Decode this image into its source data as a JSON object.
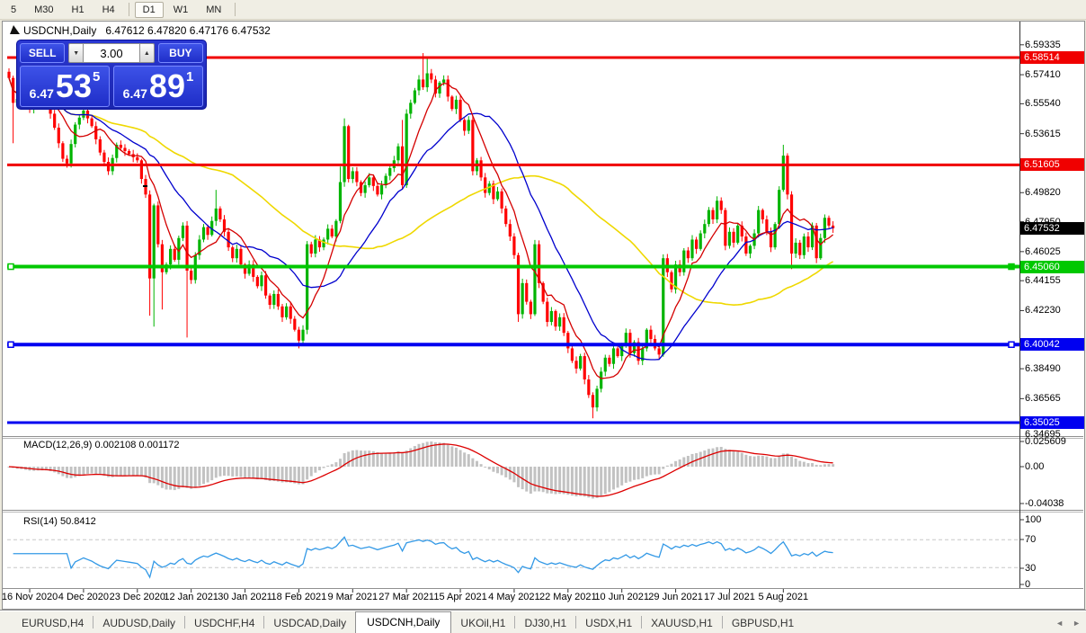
{
  "toolbar": {
    "items": [
      {
        "label": "5"
      },
      {
        "label": "M30"
      },
      {
        "label": "H1"
      },
      {
        "label": "H4"
      },
      {
        "label": "D1",
        "active": true
      },
      {
        "label": "W1"
      },
      {
        "label": "MN"
      }
    ]
  },
  "chart": {
    "title": {
      "symbol": "USDCNH,Daily",
      "ohlc_text": "6.47612 6.47820 6.47176 6.47532"
    },
    "trade_panel": {
      "sell_label": "SELL",
      "buy_label": "BUY",
      "volume": "3.00",
      "spinner_down_icon": "▼",
      "spinner_up_icon": "▲",
      "price_prefix": "6.47",
      "sell_big": "53",
      "sell_sup": "5",
      "buy_big": "89",
      "buy_sup": "1"
    }
  },
  "indicators": {
    "macd": {
      "label": "MACD(12,26,9) 0.002108 0.001172",
      "axis_labels": [
        "0.025609",
        "0.00",
        "-0.04038"
      ],
      "params": [
        12,
        26,
        9
      ],
      "values": [
        0.002108,
        0.001172
      ]
    },
    "rsi": {
      "label": "RSI(14) 50.8412",
      "axis_labels": [
        "100",
        "70",
        "30",
        "0"
      ],
      "period": 14,
      "value": 50.8412
    }
  },
  "tabs": {
    "items": [
      {
        "label": "EURUSD,H4"
      },
      {
        "label": "AUDUSD,Daily"
      },
      {
        "label": "USDCHF,H4"
      },
      {
        "label": "USDCAD,Daily"
      },
      {
        "label": "USDCNH,Daily",
        "active": true
      },
      {
        "label": "UKOil,H1"
      },
      {
        "label": "DJ30,H1"
      },
      {
        "label": "USDX,H1"
      },
      {
        "label": "XAUUSD,H1"
      },
      {
        "label": "GBPUSD,H1"
      }
    ],
    "nav_left": "◄",
    "nav_right": "►"
  },
  "chart_data": {
    "type": "candlestick+indicators",
    "symbol": "USDCNH",
    "timeframe": "Daily",
    "ohlc_display": {
      "open": "6.47612",
      "high": "6.47820",
      "low": "6.47176",
      "close": "6.47532"
    },
    "n_candles": 200,
    "price_anchors": [
      [
        0,
        6.572
      ],
      [
        1,
        6.556
      ],
      [
        3,
        6.561
      ],
      [
        5,
        6.552
      ],
      [
        7,
        6.563
      ],
      [
        9,
        6.558
      ],
      [
        11,
        6.54
      ],
      [
        13,
        6.52
      ],
      [
        14,
        6.517
      ],
      [
        16,
        6.542
      ],
      [
        18,
        6.551
      ],
      [
        20,
        6.541
      ],
      [
        22,
        6.524
      ],
      [
        24,
        6.512
      ],
      [
        26,
        6.529
      ],
      [
        29,
        6.523
      ],
      [
        31,
        6.519
      ],
      [
        32,
        6.507
      ],
      [
        33,
        6.497
      ],
      [
        34,
        6.443
      ],
      [
        35,
        6.49
      ],
      [
        36,
        6.465
      ],
      [
        37,
        6.447
      ],
      [
        38,
        6.452
      ],
      [
        39,
        6.462
      ],
      [
        40,
        6.455
      ],
      [
        41,
        6.469
      ],
      [
        42,
        6.477
      ],
      [
        43,
        6.448
      ],
      [
        44,
        6.442
      ],
      [
        45,
        6.458
      ],
      [
        46,
        6.468
      ],
      [
        47,
        6.476
      ],
      [
        48,
        6.471
      ],
      [
        49,
        6.48
      ],
      [
        50,
        6.488
      ],
      [
        51,
        6.481
      ],
      [
        52,
        6.473
      ],
      [
        53,
        6.463
      ],
      [
        54,
        6.456
      ],
      [
        55,
        6.462
      ],
      [
        56,
        6.452
      ],
      [
        57,
        6.446
      ],
      [
        58,
        6.452
      ],
      [
        59,
        6.444
      ],
      [
        60,
        6.438
      ],
      [
        61,
        6.445
      ],
      [
        62,
        6.432
      ],
      [
        63,
        6.426
      ],
      [
        64,
        6.433
      ],
      [
        65,
        6.425
      ],
      [
        66,
        6.418
      ],
      [
        67,
        6.425
      ],
      [
        68,
        6.417
      ],
      [
        69,
        6.41
      ],
      [
        70,
        6.403
      ],
      [
        71,
        6.41
      ],
      [
        72,
        6.465
      ],
      [
        73,
        6.459
      ],
      [
        74,
        6.468
      ],
      [
        75,
        6.463
      ],
      [
        76,
        6.468
      ],
      [
        77,
        6.475
      ],
      [
        78,
        6.47
      ],
      [
        79,
        6.48
      ],
      [
        80,
        6.505
      ],
      [
        81,
        6.541
      ],
      [
        82,
        6.507
      ],
      [
        83,
        6.512
      ],
      [
        85,
        6.498
      ],
      [
        87,
        6.508
      ],
      [
        89,
        6.497
      ],
      [
        91,
        6.509
      ],
      [
        93,
        6.519
      ],
      [
        94,
        6.528
      ],
      [
        95,
        6.503
      ],
      [
        96,
        6.549
      ],
      [
        97,
        6.556
      ],
      [
        98,
        6.564
      ],
      [
        99,
        6.571
      ],
      [
        100,
        6.566
      ],
      [
        101,
        6.575
      ],
      [
        102,
        6.571
      ],
      [
        103,
        6.562
      ],
      [
        104,
        6.569
      ],
      [
        105,
        6.571
      ],
      [
        106,
        6.56
      ],
      [
        107,
        6.552
      ],
      [
        108,
        6.558
      ],
      [
        109,
        6.545
      ],
      [
        110,
        6.538
      ],
      [
        111,
        6.545
      ],
      [
        112,
        6.512
      ],
      [
        113,
        6.519
      ],
      [
        114,
        6.508
      ],
      [
        115,
        6.498
      ],
      [
        116,
        6.504
      ],
      [
        117,
        6.494
      ],
      [
        118,
        6.499
      ],
      [
        119,
        6.488
      ],
      [
        120,
        6.478
      ],
      [
        121,
        6.47
      ],
      [
        122,
        6.458
      ],
      [
        123,
        6.42
      ],
      [
        124,
        6.44
      ],
      [
        125,
        6.428
      ],
      [
        126,
        6.42
      ],
      [
        127,
        6.465
      ],
      [
        128,
        6.44
      ],
      [
        129,
        6.428
      ],
      [
        130,
        6.415
      ],
      [
        131,
        6.422
      ],
      [
        132,
        6.412
      ],
      [
        133,
        6.418
      ],
      [
        134,
        6.408
      ],
      [
        135,
        6.398
      ],
      [
        136,
        6.39
      ],
      [
        137,
        6.385
      ],
      [
        138,
        6.393
      ],
      [
        139,
        6.378
      ],
      [
        140,
        6.368
      ],
      [
        141,
        6.36
      ],
      [
        142,
        6.372
      ],
      [
        143,
        6.383
      ],
      [
        144,
        6.392
      ],
      [
        145,
        6.388
      ],
      [
        146,
        6.398
      ],
      [
        147,
        6.393
      ],
      [
        148,
        6.4
      ],
      [
        149,
        6.408
      ],
      [
        150,
        6.395
      ],
      [
        151,
        6.402
      ],
      [
        152,
        6.39
      ],
      [
        153,
        6.398
      ],
      [
        154,
        6.41
      ],
      [
        155,
        6.404
      ],
      [
        156,
        6.398
      ],
      [
        157,
        6.394
      ],
      [
        158,
        6.456
      ],
      [
        159,
        6.447
      ],
      [
        160,
        6.436
      ],
      [
        161,
        6.452
      ],
      [
        162,
        6.447
      ],
      [
        163,
        6.461
      ],
      [
        164,
        6.456
      ],
      [
        165,
        6.468
      ],
      [
        166,
        6.462
      ],
      [
        167,
        6.472
      ],
      [
        168,
        6.478
      ],
      [
        169,
        6.487
      ],
      [
        170,
        6.481
      ],
      [
        171,
        6.493
      ],
      [
        172,
        6.487
      ],
      [
        173,
        6.464
      ],
      [
        174,
        6.473
      ],
      [
        175,
        6.466
      ],
      [
        176,
        6.477
      ],
      [
        177,
        6.47
      ],
      [
        178,
        6.459
      ],
      [
        179,
        6.464
      ],
      [
        180,
        6.472
      ],
      [
        181,
        6.487
      ],
      [
        182,
        6.481
      ],
      [
        183,
        6.473
      ],
      [
        184,
        6.463
      ],
      [
        185,
        6.478
      ],
      [
        186,
        6.5
      ],
      [
        187,
        6.522
      ],
      [
        188,
        6.497
      ],
      [
        189,
        6.459
      ],
      [
        190,
        6.466
      ],
      [
        191,
        6.458
      ],
      [
        192,
        6.47
      ],
      [
        193,
        6.463
      ],
      [
        194,
        6.477
      ],
      [
        195,
        6.456
      ],
      [
        196,
        6.469
      ],
      [
        197,
        6.482
      ],
      [
        198,
        6.477
      ],
      [
        199,
        6.4753
      ]
    ],
    "special_wicks": {
      "1": {
        "low": 6.53
      },
      "34": {
        "low": 6.419
      },
      "35": {
        "low": 6.412
      },
      "37": {
        "low": 6.423
      },
      "43": {
        "low": 6.405
      },
      "50": {
        "high": 6.5
      },
      "70": {
        "low": 6.398
      },
      "80": {
        "high": 6.515
      },
      "81": {
        "high": 6.546
      },
      "95": {
        "high": 6.545
      },
      "100": {
        "high": 6.588
      },
      "101": {
        "high": 6.586
      },
      "123": {
        "low": 6.415
      },
      "141": {
        "low": 6.353
      },
      "187": {
        "high": 6.529
      },
      "189": {
        "low": 6.449
      }
    },
    "ma_periods": {
      "fast": 8,
      "mid": 21,
      "slow": 55
    },
    "hlines": [
      {
        "price": 6.58514,
        "color": "#F00000",
        "w": 3,
        "handles": false
      },
      {
        "price": 6.51605,
        "color": "#F00000",
        "w": 3,
        "handles": false
      },
      {
        "price": 6.4506,
        "color": "#00C800",
        "w": 4,
        "handles": true
      },
      {
        "price": 6.40042,
        "color": "#0000F0",
        "w": 4,
        "handles": true
      },
      {
        "price": 6.35025,
        "color": "#0000F0",
        "w": 3,
        "handles": false
      }
    ],
    "current_price": 6.47532,
    "price_axis_labels": [
      "6.59335",
      "6.57410",
      "6.55540",
      "6.53615",
      "6.49820",
      "6.47950",
      "6.46025",
      "6.44155",
      "6.42230",
      "6.38490",
      "6.36565",
      "6.34695"
    ],
    "price_badges": [
      {
        "text": "6.58514",
        "bg": "#F00000"
      },
      {
        "text": "6.51605",
        "bg": "#F00000"
      },
      {
        "text": "6.47532",
        "bg": "#000000"
      },
      {
        "text": "6.45060",
        "bg": "#00C800"
      },
      {
        "text": "6.40042",
        "bg": "#0000F0"
      },
      {
        "text": "6.35025",
        "bg": "#0000F0"
      }
    ],
    "time_axis": [
      "16 Nov 2020",
      "4 Dec 2020",
      "23 Dec 2020",
      "12 Jan 2021",
      "30 Jan 2021",
      "18 Feb 2021",
      "9 Mar 2021",
      "27 Mar 2021",
      "15 Apr 2021",
      "4 May 2021",
      "22 May 2021",
      "10 Jun 2021",
      "29 Jun 2021",
      "17 Jul 2021",
      "5 Aug 2021"
    ],
    "colors": {
      "candle_up": "#00B400",
      "candle_down": "#FF0000",
      "ma_fast": "#D40000",
      "ma_mid": "#0000CD",
      "ma_slow": "#EFD800",
      "macd_bar": "#C2C2C2",
      "macd_signal": "#DD0000",
      "rsi_line": "#3399E6",
      "level_dash": "#C8C8C8"
    }
  }
}
